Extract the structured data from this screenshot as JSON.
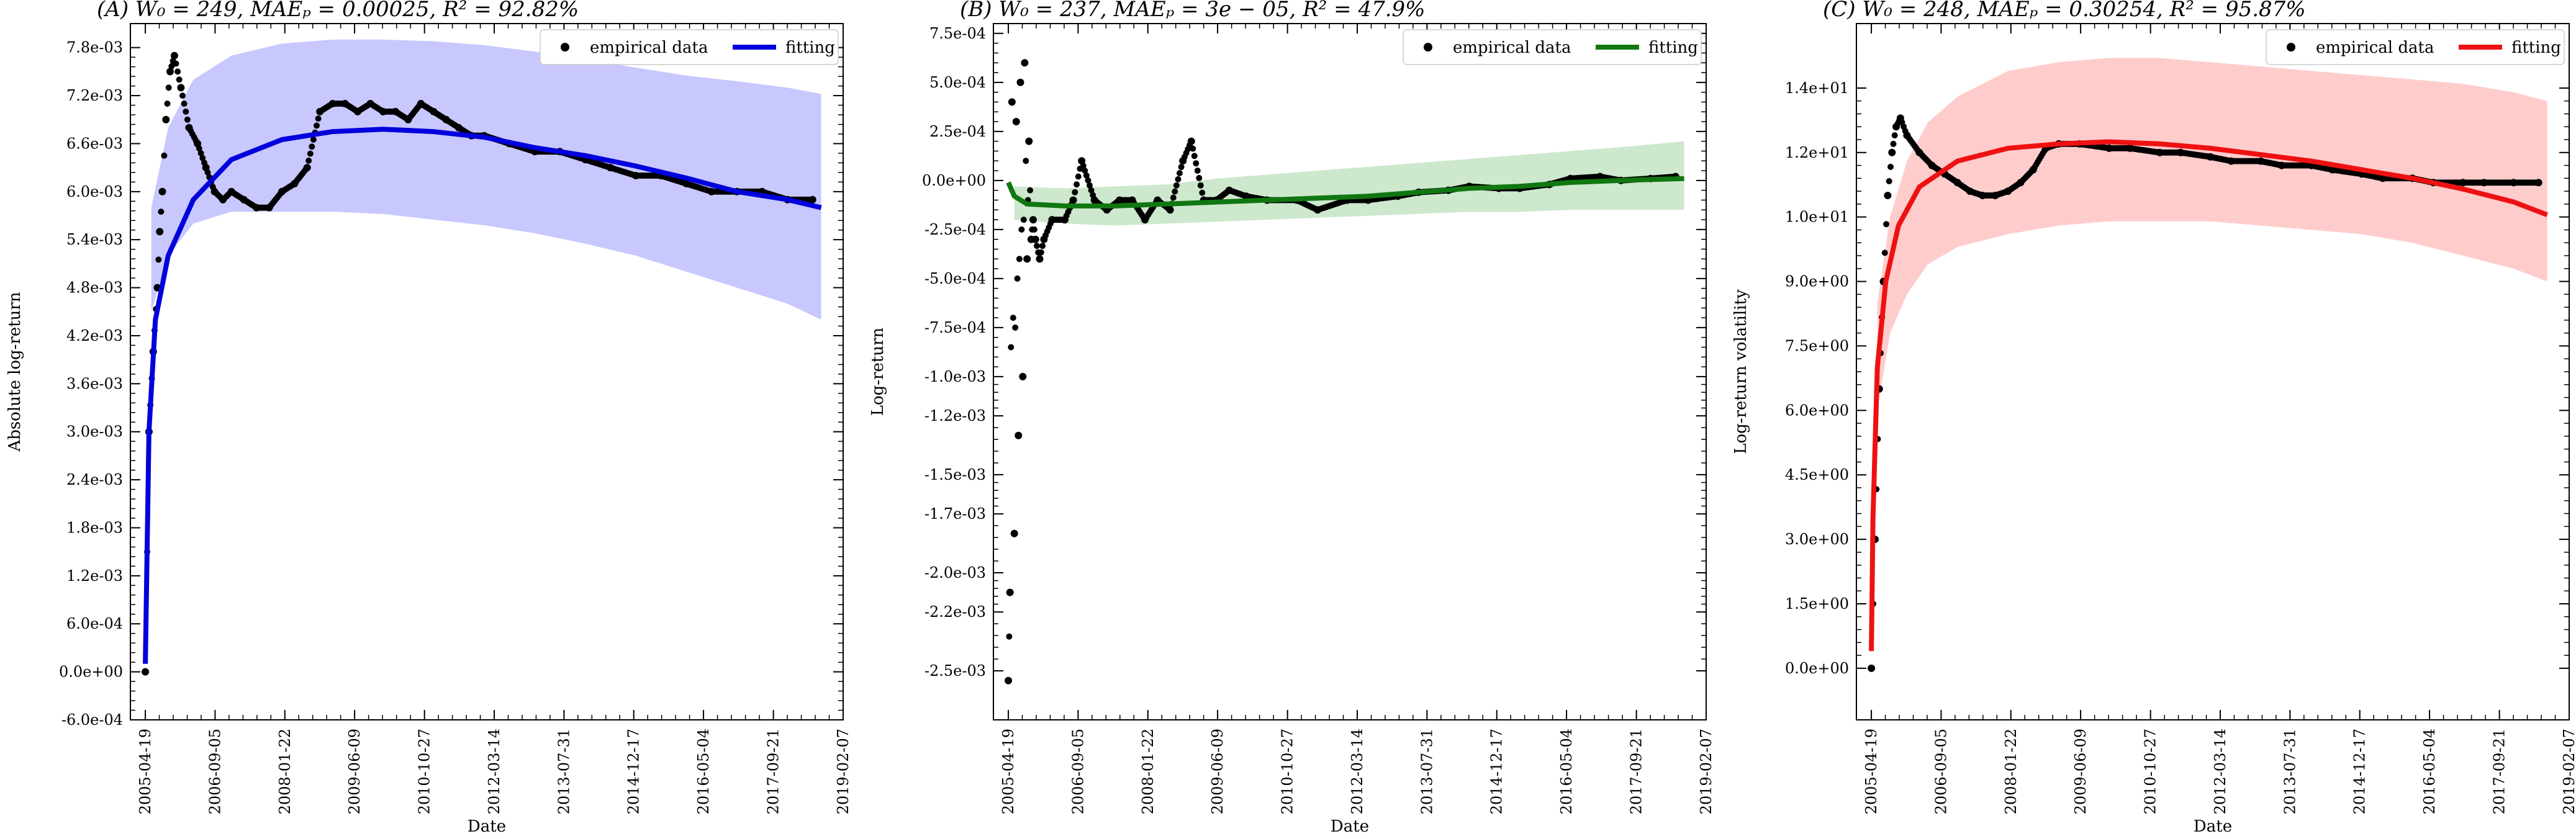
{
  "figure": {
    "panels": [
      {
        "id": "A",
        "title": "(A) W₀ = 249, MAEₚ = 0.00025, R² = 92.82%",
        "ylabel": "Absolute log-return",
        "xlabel": "Date",
        "fit_color": "#0000dd",
        "band_color": "#c8c8ff",
        "legend": {
          "empirical": "empirical data",
          "fit": "fitting"
        }
      },
      {
        "id": "B",
        "title": "(B) W₀ = 237, MAEₚ = 3e − 05, R² = 47.9%",
        "ylabel": "Log-return",
        "xlabel": "Date",
        "fit_color": "#117711",
        "band_color": "#cde8cd",
        "legend": {
          "empirical": "empirical data",
          "fit": "fitting"
        }
      },
      {
        "id": "C",
        "title": "(C) W₀ = 248, MAEₚ = 0.30254, R² = 95.87%",
        "ylabel": "Log-return volatility",
        "xlabel": "Date",
        "fit_color": "#ee1111",
        "band_color": "#ffcccc",
        "legend": {
          "empirical": "empirical data",
          "fit": "fitting"
        }
      }
    ]
  },
  "chart_data": [
    {
      "type": "scatter",
      "title": "(A) W₀ = 249, MAEₚ = 0.00025, R² = 92.82%",
      "xlabel": "Date",
      "ylabel": "Absolute log-return",
      "x_ticks": [
        "2005-04-19",
        "2006-09-05",
        "2008-01-22",
        "2009-06-09",
        "2010-10-27",
        "2012-03-14",
        "2013-07-31",
        "2014-12-17",
        "2016-05-04",
        "2017-09-21",
        "2019-02-07"
      ],
      "xlim": [
        "2005-01-01",
        "2019-02-07"
      ],
      "y_ticks": [
        "-6.0e-04",
        "0.0e+00",
        "6.0e-04",
        "1.2e-03",
        "1.8e-03",
        "2.4e-03",
        "3.0e-03",
        "3.6e-03",
        "4.2e-03",
        "4.8e-03",
        "5.4e-03",
        "6.0e-03",
        "6.6e-03",
        "7.2e-03",
        "7.8e-03"
      ],
      "ylim": [
        -0.0006,
        0.0081
      ],
      "legend_position": "top-right",
      "series": [
        {
          "name": "empirical data",
          "kind": "scatter",
          "x": [
            "2005-04-19",
            "2005-05-15",
            "2005-06-15",
            "2005-07-15",
            "2005-08-01",
            "2005-08-20",
            "2005-09-15",
            "2005-10-15",
            "2005-11-15",
            "2006-01-01",
            "2006-03-01",
            "2006-05-01",
            "2006-07-01",
            "2006-09-01",
            "2006-11-01",
            "2007-01-01",
            "2007-04-01",
            "2007-07-01",
            "2007-10-01",
            "2008-01-01",
            "2008-04-01",
            "2008-07-01",
            "2008-10-01",
            "2009-01-01",
            "2009-04-01",
            "2009-07-01",
            "2009-10-01",
            "2010-01-01",
            "2010-04-01",
            "2010-07-01",
            "2010-10-01",
            "2011-01-01",
            "2011-04-01",
            "2011-07-01",
            "2011-10-01",
            "2012-01-01",
            "2012-07-01",
            "2013-01-01",
            "2013-07-01",
            "2014-01-01",
            "2014-07-01",
            "2015-01-01",
            "2015-07-01",
            "2016-01-01",
            "2016-07-01",
            "2017-01-01",
            "2017-07-01",
            "2018-01-01",
            "2018-07-01"
          ],
          "y": [
            0.0,
            0.003,
            0.004,
            0.0048,
            0.0055,
            0.006,
            0.0069,
            0.0075,
            0.0077,
            0.0073,
            0.0068,
            0.0066,
            0.0063,
            0.006,
            0.0059,
            0.006,
            0.0059,
            0.0058,
            0.0058,
            0.006,
            0.0061,
            0.0063,
            0.007,
            0.0071,
            0.0071,
            0.007,
            0.0071,
            0.007,
            0.007,
            0.0069,
            0.0071,
            0.007,
            0.0069,
            0.0068,
            0.0067,
            0.0067,
            0.0066,
            0.0065,
            0.0065,
            0.0064,
            0.0063,
            0.0062,
            0.0062,
            0.0061,
            0.006,
            0.006,
            0.006,
            0.0059,
            0.0059
          ]
        },
        {
          "name": "fitting",
          "kind": "line",
          "x": [
            "2005-04-19",
            "2005-05-15",
            "2005-07-01",
            "2005-10-01",
            "2006-04-01",
            "2007-01-01",
            "2008-01-01",
            "2009-01-01",
            "2010-01-01",
            "2011-01-01",
            "2012-01-01",
            "2013-01-01",
            "2014-01-01",
            "2015-01-01",
            "2016-01-01",
            "2017-01-01",
            "2018-01-01",
            "2018-09-01"
          ],
          "y": [
            0.0001,
            0.003,
            0.0044,
            0.0052,
            0.0059,
            0.0064,
            0.00665,
            0.00675,
            0.00678,
            0.00675,
            0.00668,
            0.00655,
            0.00645,
            0.00632,
            0.00617,
            0.006,
            0.0059,
            0.0058
          ]
        },
        {
          "name": "",
          "kind": "band",
          "x": [
            "2005-06-01",
            "2005-10-01",
            "2006-04-01",
            "2007-01-01",
            "2008-01-01",
            "2009-01-01",
            "2010-01-01",
            "2011-01-01",
            "2012-01-01",
            "2013-01-01",
            "2014-01-01",
            "2015-01-01",
            "2016-01-01",
            "2017-01-01",
            "2018-01-01",
            "2018-09-01"
          ],
          "upper": [
            0.0058,
            0.0068,
            0.0074,
            0.0077,
            0.00785,
            0.0079,
            0.0079,
            0.00788,
            0.00783,
            0.00775,
            0.00765,
            0.00755,
            0.00745,
            0.00738,
            0.0073,
            0.00722
          ],
          "lower": [
            0.0045,
            0.0052,
            0.0056,
            0.00575,
            0.00575,
            0.00575,
            0.00572,
            0.00565,
            0.00558,
            0.00548,
            0.00535,
            0.0052,
            0.005,
            0.0048,
            0.0046,
            0.0044
          ]
        }
      ]
    },
    {
      "type": "scatter",
      "title": "(B) W₀ = 237, MAEₚ = 3e − 05, R² = 47.9%",
      "xlabel": "Date",
      "ylabel": "Log-return",
      "x_ticks": [
        "2005-04-19",
        "2006-09-05",
        "2008-01-22",
        "2009-06-09",
        "2010-10-27",
        "2012-03-14",
        "2013-07-31",
        "2014-12-17",
        "2016-05-04",
        "2017-09-21",
        "2019-02-07"
      ],
      "xlim": [
        "2005-01-01",
        "2019-02-07"
      ],
      "y_ticks": [
        "-2.5e-03",
        "-2.2e-03",
        "-2.0e-03",
        "-1.7e-03",
        "-1.5e-03",
        "-1.2e-03",
        "-1.0e-03",
        "-7.5e-04",
        "-5.0e-04",
        "-2.5e-04",
        "0.0e+00",
        "2.5e-04",
        "5.0e-04",
        "7.5e-04"
      ],
      "ylim": [
        -0.00275,
        0.0008
      ],
      "legend_position": "top-right",
      "series": [
        {
          "name": "empirical data",
          "kind": "scatter",
          "x": [
            "2005-04-19",
            "2005-05-01",
            "2005-05-15",
            "2005-06-01",
            "2005-06-15",
            "2005-07-01",
            "2005-07-15",
            "2005-08-01",
            "2005-08-15",
            "2005-09-01",
            "2005-09-15",
            "2005-10-01",
            "2005-10-15",
            "2005-11-01",
            "2005-12-01",
            "2006-01-01",
            "2006-03-01",
            "2006-06-01",
            "2006-08-01",
            "2006-10-01",
            "2007-01-01",
            "2007-04-01",
            "2007-07-01",
            "2007-10-01",
            "2008-01-01",
            "2008-04-01",
            "2008-07-01",
            "2008-10-01",
            "2008-12-01",
            "2009-03-01",
            "2009-06-01",
            "2009-09-01",
            "2010-01-01",
            "2010-06-01",
            "2011-01-01",
            "2011-06-01",
            "2012-01-01",
            "2012-06-01",
            "2013-01-01",
            "2013-06-01",
            "2014-01-01",
            "2014-06-01",
            "2015-01-01",
            "2015-06-01",
            "2016-01-01",
            "2016-06-01",
            "2017-01-01",
            "2017-06-01",
            "2018-01-01",
            "2018-07-01"
          ],
          "y": [
            -0.00255,
            -0.0021,
            0.0004,
            -0.0018,
            0.0003,
            -0.0013,
            0.0005,
            -0.001,
            0.0006,
            -0.0004,
            0.0002,
            -0.0003,
            -0.0002,
            -0.0003,
            -0.0004,
            -0.0003,
            -0.0002,
            -0.0002,
            -0.0001,
            0.0001,
            -0.0001,
            -0.00015,
            -0.0001,
            -0.0001,
            -0.0002,
            -0.0001,
            -0.00015,
            0.0001,
            0.0002,
            -0.0001,
            -0.0001,
            -5e-05,
            -8e-05,
            -0.0001,
            -0.0001,
            -0.00015,
            -0.0001,
            -0.0001,
            -8e-05,
            -6e-05,
            -5e-05,
            -3e-05,
            -4e-05,
            -4e-05,
            -2e-05,
            1e-05,
            2e-05,
            0.0,
            1e-05,
            2e-05
          ]
        },
        {
          "name": "fitting",
          "kind": "line",
          "x": [
            "2005-04-19",
            "2005-06-01",
            "2005-09-01",
            "2006-06-01",
            "2007-06-01",
            "2008-06-01",
            "2009-06-01",
            "2010-06-01",
            "2011-06-01",
            "2012-06-01",
            "2013-06-01",
            "2014-06-01",
            "2015-06-01",
            "2016-06-01",
            "2017-06-01",
            "2018-09-01"
          ],
          "y": [
            -1e-05,
            -8e-05,
            -0.00012,
            -0.00013,
            -0.00013,
            -0.00012,
            -0.00011,
            -0.0001,
            -9e-05,
            -8e-05,
            -6e-05,
            -4e-05,
            -3e-05,
            -1e-05,
            0.0,
            1e-05
          ]
        },
        {
          "name": "",
          "kind": "band",
          "x": [
            "2005-06-01",
            "2006-06-01",
            "2007-06-01",
            "2008-06-01",
            "2009-06-01",
            "2010-06-01",
            "2011-06-01",
            "2012-06-01",
            "2013-06-01",
            "2014-06-01",
            "2015-06-01",
            "2016-06-01",
            "2017-06-01",
            "2018-09-01"
          ],
          "upper": [
            -3e-05,
            -4e-05,
            -3e-05,
            -2e-05,
            1e-05,
            3e-05,
            5e-05,
            7e-05,
            9e-05,
            0.00011,
            0.00013,
            0.00015,
            0.00017,
            0.0002
          ],
          "lower": [
            -0.0002,
            -0.00022,
            -0.00023,
            -0.00022,
            -0.00021,
            -0.0002,
            -0.00019,
            -0.00018,
            -0.00017,
            -0.00016,
            -0.00016,
            -0.00015,
            -0.00015,
            -0.00015
          ]
        }
      ]
    },
    {
      "type": "scatter",
      "title": "(C) W₀ = 248, MAEₚ = 0.30254, R² = 95.87%",
      "xlabel": "Date",
      "ylabel": "Log-return volatility",
      "x_ticks": [
        "2005-04-19",
        "2006-09-05",
        "2008-01-22",
        "2009-06-09",
        "2010-10-27",
        "2012-03-14",
        "2013-07-31",
        "2014-12-17",
        "2016-05-04",
        "2017-09-21",
        "2019-02-07"
      ],
      "xlim": [
        "2005-01-01",
        "2019-02-07"
      ],
      "y_ticks": [
        "0.0e+00",
        "1.5e+00",
        "3.0e+00",
        "4.5e+00",
        "6.0e+00",
        "7.5e+00",
        "9.0e+00",
        "1.0e+01",
        "1.2e+01",
        "1.4e+01"
      ],
      "y_tick_values": [
        0,
        1.5,
        3.0,
        4.5,
        6.0,
        7.5,
        9.0,
        10.5,
        12.0,
        13.5
      ],
      "ylim": [
        -1.2,
        15.0
      ],
      "legend_position": "top-right",
      "series": [
        {
          "name": "empirical data",
          "kind": "scatter",
          "x": [
            "2005-04-19",
            "2005-05-15",
            "2005-06-15",
            "2005-07-15",
            "2005-08-15",
            "2005-09-15",
            "2005-10-15",
            "2005-11-15",
            "2006-01-01",
            "2006-04-01",
            "2006-07-01",
            "2006-10-01",
            "2007-01-01",
            "2007-04-01",
            "2007-07-01",
            "2007-10-01",
            "2008-01-01",
            "2008-04-01",
            "2008-07-01",
            "2008-10-01",
            "2009-01-01",
            "2009-06-01",
            "2010-01-01",
            "2010-06-01",
            "2011-01-01",
            "2011-06-01",
            "2012-01-01",
            "2012-06-01",
            "2013-01-01",
            "2013-06-01",
            "2014-01-01",
            "2014-06-01",
            "2015-01-01",
            "2015-06-01",
            "2016-01-01",
            "2016-06-01",
            "2017-01-01",
            "2017-06-01",
            "2018-01-01",
            "2018-07-01"
          ],
          "y": [
            0.0,
            3.0,
            6.5,
            9.0,
            11.0,
            12.0,
            12.6,
            12.8,
            12.4,
            12.0,
            11.7,
            11.5,
            11.3,
            11.1,
            11.0,
            11.0,
            11.1,
            11.3,
            11.6,
            12.1,
            12.2,
            12.2,
            12.1,
            12.1,
            12.0,
            12.0,
            11.9,
            11.8,
            11.8,
            11.7,
            11.7,
            11.6,
            11.5,
            11.4,
            11.4,
            11.3,
            11.3,
            11.3,
            11.3,
            11.3
          ]
        },
        {
          "name": "fitting",
          "kind": "line",
          "x": [
            "2005-04-19",
            "2005-05-01",
            "2005-06-01",
            "2005-08-01",
            "2005-11-01",
            "2006-04-01",
            "2007-01-01",
            "2008-01-01",
            "2009-01-01",
            "2010-01-01",
            "2011-01-01",
            "2012-01-01",
            "2013-01-01",
            "2014-01-01",
            "2015-01-01",
            "2016-01-01",
            "2017-01-01",
            "2018-01-01",
            "2018-09-01"
          ],
          "y": [
            0.4,
            3.5,
            7.0,
            9.0,
            10.3,
            11.2,
            11.8,
            12.1,
            12.2,
            12.25,
            12.2,
            12.1,
            11.95,
            11.8,
            11.6,
            11.4,
            11.15,
            10.85,
            10.55
          ]
        },
        {
          "name": "",
          "kind": "band",
          "x": [
            "2005-06-01",
            "2005-09-01",
            "2006-01-01",
            "2006-06-01",
            "2007-01-01",
            "2008-01-01",
            "2009-01-01",
            "2010-01-01",
            "2011-01-01",
            "2012-01-01",
            "2013-01-01",
            "2014-01-01",
            "2015-01-01",
            "2016-01-01",
            "2017-01-01",
            "2018-01-01",
            "2018-09-01"
          ],
          "upper": [
            8.5,
            10.5,
            11.8,
            12.7,
            13.3,
            13.9,
            14.1,
            14.2,
            14.2,
            14.1,
            14.0,
            13.9,
            13.8,
            13.7,
            13.6,
            13.4,
            13.2
          ],
          "lower": [
            6.0,
            7.8,
            8.7,
            9.4,
            9.8,
            10.1,
            10.3,
            10.4,
            10.4,
            10.4,
            10.3,
            10.2,
            10.1,
            9.9,
            9.6,
            9.3,
            9.0
          ]
        }
      ]
    }
  ]
}
